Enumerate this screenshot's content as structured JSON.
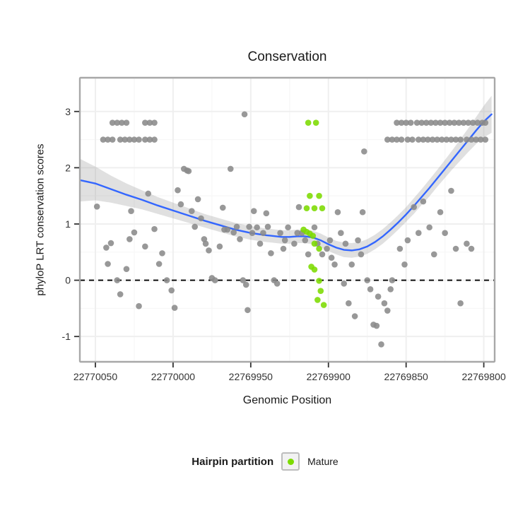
{
  "chart_data": {
    "type": "scatter",
    "title": "Conservation",
    "xlabel": "Genomic Position",
    "ylabel": "phyloP LRT conservation scores",
    "x_ticks": [
      22770050,
      22770000,
      22769950,
      22769900,
      22769850,
      22769800
    ],
    "y_ticks": [
      -1,
      0,
      1,
      2,
      3
    ],
    "x_minor": [
      22770025,
      22769975,
      22769925,
      22769875,
      22769825
    ],
    "y_minor": [
      -0.5,
      0.5,
      1.5,
      2.5
    ],
    "xlim": [
      22770060,
      22769793
    ],
    "ylim": [
      -1.45,
      3.6
    ],
    "x_axis_reversed": true,
    "grid": true,
    "reference_line_y": 0,
    "colors": {
      "other_points": "#8a8a8a",
      "mature_points": "#7cdb00",
      "smooth_line": "#3366FF",
      "band": "#999999",
      "panel_border": "#a8a8a8",
      "axis_text": "#333333"
    },
    "legend": {
      "title": "Hairpin partition",
      "position": "bottom",
      "entries": [
        {
          "label": "Mature",
          "color": "#7cdb00"
        }
      ]
    },
    "series": [
      {
        "name": "other",
        "color": "#8a8a8a",
        "points": [
          [
            22770039,
            2.8
          ],
          [
            22770036,
            2.8
          ],
          [
            22770033,
            2.8
          ],
          [
            22770030,
            2.8
          ],
          [
            22770018,
            2.8
          ],
          [
            22770015,
            2.8
          ],
          [
            22770012,
            2.8
          ],
          [
            22770045,
            2.5
          ],
          [
            22770042,
            2.5
          ],
          [
            22770039,
            2.5
          ],
          [
            22770034,
            2.5
          ],
          [
            22770031,
            2.5
          ],
          [
            22770028,
            2.5
          ],
          [
            22770025,
            2.5
          ],
          [
            22770022,
            2.5
          ],
          [
            22770018,
            2.5
          ],
          [
            22770015,
            2.5
          ],
          [
            22770012,
            2.5
          ],
          [
            22769954,
            2.95
          ],
          [
            22769856,
            2.8
          ],
          [
            22769853,
            2.8
          ],
          [
            22769850,
            2.8
          ],
          [
            22769847,
            2.8
          ],
          [
            22769843,
            2.8
          ],
          [
            22769840,
            2.8
          ],
          [
            22769837,
            2.8
          ],
          [
            22769834,
            2.8
          ],
          [
            22769831,
            2.8
          ],
          [
            22769828,
            2.8
          ],
          [
            22769825,
            2.8
          ],
          [
            22769822,
            2.8
          ],
          [
            22769819,
            2.8
          ],
          [
            22769816,
            2.8
          ],
          [
            22769813,
            2.8
          ],
          [
            22769810,
            2.8
          ],
          [
            22769807,
            2.8
          ],
          [
            22769804,
            2.8
          ],
          [
            22769801,
            2.8
          ],
          [
            22769799,
            2.8
          ],
          [
            22769862,
            2.5
          ],
          [
            22769859,
            2.5
          ],
          [
            22769856,
            2.5
          ],
          [
            22769853,
            2.5
          ],
          [
            22769849,
            2.5
          ],
          [
            22769846,
            2.5
          ],
          [
            22769842,
            2.5
          ],
          [
            22769839,
            2.5
          ],
          [
            22769836,
            2.5
          ],
          [
            22769833,
            2.5
          ],
          [
            22769830,
            2.5
          ],
          [
            22769827,
            2.5
          ],
          [
            22769824,
            2.5
          ],
          [
            22769821,
            2.5
          ],
          [
            22769818,
            2.5
          ],
          [
            22769815,
            2.5
          ],
          [
            22769811,
            2.5
          ],
          [
            22769808,
            2.5
          ],
          [
            22769805,
            2.5
          ],
          [
            22769802,
            2.5
          ],
          [
            22769799,
            2.5
          ],
          [
            22770049,
            1.31
          ],
          [
            22770043,
            0.58
          ],
          [
            22770042,
            0.29
          ],
          [
            22770040,
            0.66
          ],
          [
            22770036,
            0.0
          ],
          [
            22770034,
            -0.25
          ],
          [
            22770030,
            0.2
          ],
          [
            22770028,
            0.73
          ],
          [
            22770027,
            1.23
          ],
          [
            22770025,
            0.85
          ],
          [
            22770022,
            -0.46
          ],
          [
            22770018,
            0.6
          ],
          [
            22770016,
            1.54
          ],
          [
            22770012,
            0.91
          ],
          [
            22770009,
            0.29
          ],
          [
            22770007,
            0.48
          ],
          [
            22770004,
            0.0
          ],
          [
            22770001,
            -0.18
          ],
          [
            22769999,
            -0.49
          ],
          [
            22769997,
            1.6
          ],
          [
            22769995,
            1.35
          ],
          [
            22769993,
            1.98
          ],
          [
            22769991,
            1.95
          ],
          [
            22769990,
            1.94
          ],
          [
            22769988,
            1.23
          ],
          [
            22769986,
            0.95
          ],
          [
            22769984,
            1.44
          ],
          [
            22769982,
            1.1
          ],
          [
            22769980,
            0.73
          ],
          [
            22769979,
            0.65
          ],
          [
            22769977,
            0.53
          ],
          [
            22769975,
            0.04
          ],
          [
            22769973,
            0.0
          ],
          [
            22769970,
            0.6
          ],
          [
            22769968,
            1.29
          ],
          [
            22769967,
            0.9
          ],
          [
            22769965,
            0.9
          ],
          [
            22769963,
            1.98
          ],
          [
            22769961,
            0.85
          ],
          [
            22769959,
            0.95
          ],
          [
            22769957,
            0.73
          ],
          [
            22769955,
            0.0
          ],
          [
            22769953,
            -0.08
          ],
          [
            22769952,
            -0.53
          ],
          [
            22769951,
            0.95
          ],
          [
            22769949,
            0.84
          ],
          [
            22769948,
            1.23
          ],
          [
            22769946,
            0.94
          ],
          [
            22769944,
            0.65
          ],
          [
            22769942,
            0.84
          ],
          [
            22769940,
            1.19
          ],
          [
            22769939,
            0.95
          ],
          [
            22769937,
            0.48
          ],
          [
            22769935,
            0.0
          ],
          [
            22769933,
            -0.06
          ],
          [
            22769931,
            0.84
          ],
          [
            22769929,
            0.56
          ],
          [
            22769928,
            0.71
          ],
          [
            22769926,
            0.94
          ],
          [
            22769922,
            0.65
          ],
          [
            22769920,
            0.84
          ],
          [
            22769919,
            1.3
          ],
          [
            22769917,
            0.84
          ],
          [
            22769915,
            0.71
          ],
          [
            22769913,
            0.46
          ],
          [
            22769909,
            0.94
          ],
          [
            22769907,
            0.65
          ],
          [
            22769904,
            0.46
          ],
          [
            22769901,
            0.56
          ],
          [
            22769899,
            0.71
          ],
          [
            22769898,
            0.4
          ],
          [
            22769896,
            0.28
          ],
          [
            22769894,
            1.21
          ],
          [
            22769892,
            0.84
          ],
          [
            22769890,
            -0.06
          ],
          [
            22769889,
            0.65
          ],
          [
            22769887,
            -0.41
          ],
          [
            22769885,
            0.28
          ],
          [
            22769883,
            -0.64
          ],
          [
            22769881,
            0.71
          ],
          [
            22769879,
            0.46
          ],
          [
            22769878,
            1.21
          ],
          [
            22769877,
            2.29
          ],
          [
            22769875,
            0.0
          ],
          [
            22769873,
            -0.16
          ],
          [
            22769871,
            -0.79
          ],
          [
            22769869,
            -0.81
          ],
          [
            22769868,
            -0.29
          ],
          [
            22769866,
            -1.14
          ],
          [
            22769864,
            -0.41
          ],
          [
            22769862,
            -0.54
          ],
          [
            22769860,
            -0.16
          ],
          [
            22769859,
            0.0
          ],
          [
            22769854,
            0.56
          ],
          [
            22769851,
            0.28
          ],
          [
            22769849,
            0.71
          ],
          [
            22769845,
            1.3
          ],
          [
            22769842,
            0.84
          ],
          [
            22769839,
            1.4
          ],
          [
            22769835,
            0.94
          ],
          [
            22769832,
            0.46
          ],
          [
            22769828,
            1.21
          ],
          [
            22769825,
            0.84
          ],
          [
            22769821,
            1.59
          ],
          [
            22769818,
            0.56
          ],
          [
            22769815,
            -0.41
          ],
          [
            22769811,
            0.65
          ],
          [
            22769808,
            0.56
          ]
        ]
      },
      {
        "name": "Mature",
        "color": "#7cdb00",
        "points": [
          [
            22769913,
            2.8
          ],
          [
            22769908,
            2.8
          ],
          [
            22769912,
            1.5
          ],
          [
            22769906,
            1.5
          ],
          [
            22769914,
            1.28
          ],
          [
            22769909,
            1.28
          ],
          [
            22769904,
            1.28
          ],
          [
            22769916,
            0.9
          ],
          [
            22769914,
            0.86
          ],
          [
            22769912,
            0.83
          ],
          [
            22769910,
            0.79
          ],
          [
            22769909,
            0.65
          ],
          [
            22769906,
            0.56
          ],
          [
            22769911,
            0.24
          ],
          [
            22769909,
            0.19
          ],
          [
            22769906,
            -0.01
          ],
          [
            22769905,
            -0.19
          ],
          [
            22769907,
            -0.35
          ],
          [
            22769903,
            -0.44
          ]
        ]
      }
    ],
    "smooth": {
      "color": "#3366FF",
      "x": [
        22770060,
        22770050,
        22770040,
        22770030,
        22770020,
        22770010,
        22770000,
        22769990,
        22769980,
        22769970,
        22769960,
        22769950,
        22769940,
        22769930,
        22769925,
        22769920,
        22769915,
        22769910,
        22769905,
        22769900,
        22769895,
        22769890,
        22769885,
        22769880,
        22769875,
        22769870,
        22769865,
        22769860,
        22769855,
        22769850,
        22769845,
        22769840,
        22769835,
        22769830,
        22769825,
        22769820,
        22769815,
        22769810,
        22769805,
        22769800,
        22769795
      ],
      "y": [
        1.78,
        1.72,
        1.62,
        1.52,
        1.43,
        1.33,
        1.24,
        1.15,
        1.06,
        0.98,
        0.9,
        0.84,
        0.8,
        0.77,
        0.77,
        0.78,
        0.78,
        0.76,
        0.71,
        0.64,
        0.58,
        0.54,
        0.53,
        0.55,
        0.6,
        0.68,
        0.78,
        0.9,
        1.03,
        1.17,
        1.32,
        1.48,
        1.64,
        1.81,
        1.98,
        2.15,
        2.32,
        2.49,
        2.66,
        2.82,
        2.95
      ],
      "band_halfwidth": [
        0.38,
        0.3,
        0.24,
        0.2,
        0.17,
        0.15,
        0.14,
        0.13,
        0.12,
        0.12,
        0.12,
        0.12,
        0.12,
        0.12,
        0.12,
        0.12,
        0.12,
        0.12,
        0.12,
        0.12,
        0.12,
        0.13,
        0.13,
        0.13,
        0.13,
        0.13,
        0.13,
        0.13,
        0.13,
        0.13,
        0.14,
        0.14,
        0.15,
        0.15,
        0.16,
        0.17,
        0.19,
        0.21,
        0.24,
        0.28,
        0.33
      ]
    }
  }
}
